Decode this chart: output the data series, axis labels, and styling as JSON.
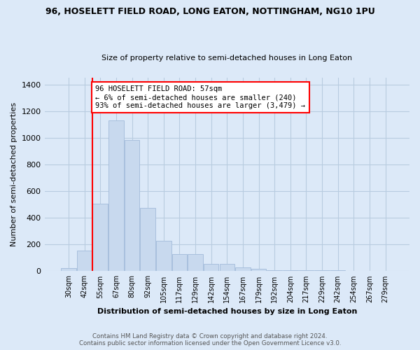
{
  "title1": "96, HOSELETT FIELD ROAD, LONG EATON, NOTTINGHAM, NG10 1PU",
  "title2": "Size of property relative to semi-detached houses in Long Eaton",
  "xlabel": "Distribution of semi-detached houses by size in Long Eaton",
  "ylabel": "Number of semi-detached properties",
  "categories": [
    "30sqm",
    "42sqm",
    "55sqm",
    "67sqm",
    "80sqm",
    "92sqm",
    "105sqm",
    "117sqm",
    "129sqm",
    "142sqm",
    "154sqm",
    "167sqm",
    "179sqm",
    "192sqm",
    "204sqm",
    "217sqm",
    "229sqm",
    "242sqm",
    "254sqm",
    "267sqm",
    "279sqm"
  ],
  "values": [
    25,
    155,
    505,
    1130,
    985,
    475,
    230,
    130,
    130,
    55,
    55,
    30,
    20,
    10,
    8,
    5,
    5,
    5,
    3,
    0,
    0
  ],
  "bar_color": "#c8d9ee",
  "bar_edge_color": "#a8c0dd",
  "red_line_x": 2,
  "annotation_text": "96 HOSELETT FIELD ROAD: 57sqm\n← 6% of semi-detached houses are smaller (240)\n93% of semi-detached houses are larger (3,479) →",
  "footer": "Contains HM Land Registry data © Crown copyright and database right 2024.\nContains public sector information licensed under the Open Government Licence v3.0.",
  "ylim": [
    0,
    1450
  ],
  "background_color": "#dce9f8",
  "plot_bg_color": "#dce9f8",
  "grid_color": "#b8cce0"
}
